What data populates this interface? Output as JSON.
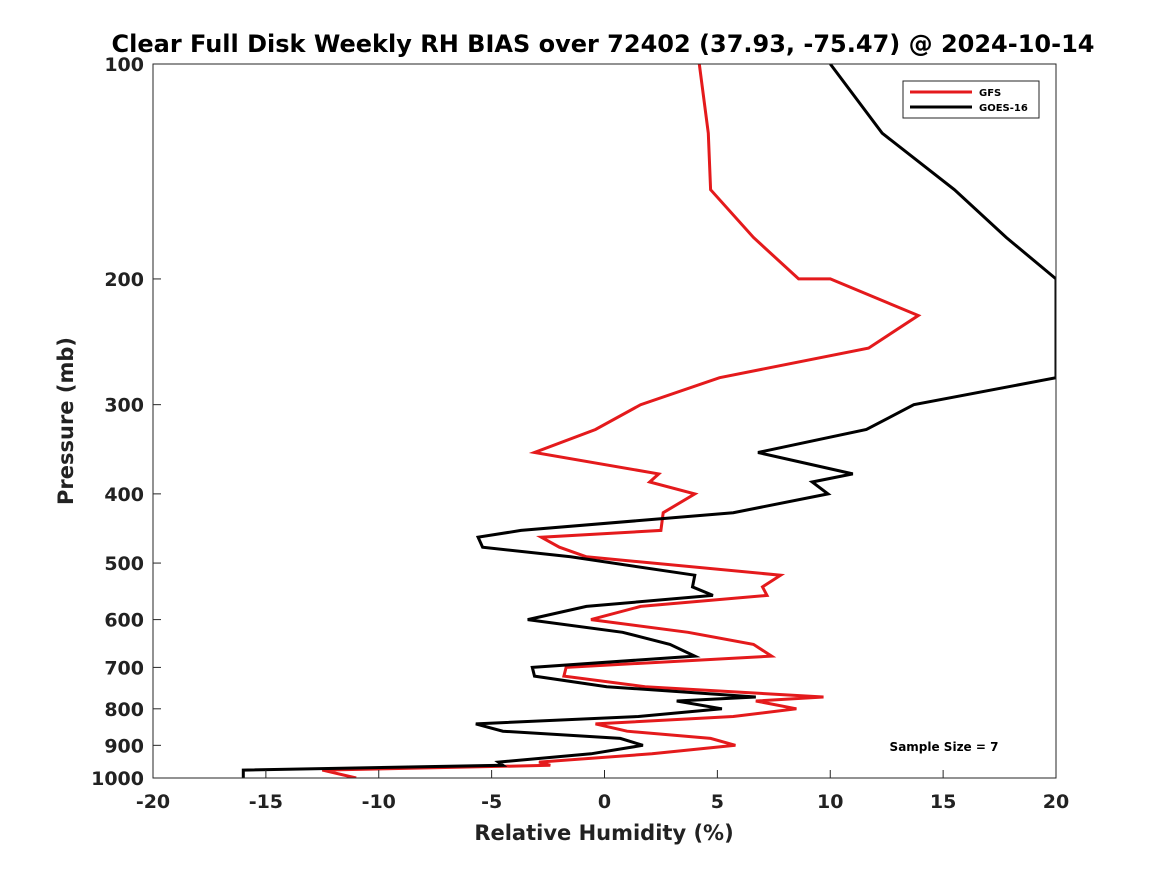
{
  "chart_data": {
    "type": "line",
    "title": "Clear Full Disk Weekly RH BIAS over 72402 (37.93, -75.47) @ 2024-10-14",
    "xlabel": "Relative Humidity (%)",
    "ylabel": "Pressure (mb)",
    "xlim": [
      -20,
      20
    ],
    "ylim": [
      100,
      1000
    ],
    "yscale": "log",
    "xticks": [
      -20,
      -15,
      -10,
      -5,
      0,
      5,
      10,
      15,
      20
    ],
    "xtick_labels": [
      "-20",
      "-15",
      "-10",
      "-5",
      "0",
      "5",
      "10",
      "15",
      "20"
    ],
    "yticks": [
      100,
      200,
      300,
      400,
      500,
      600,
      700,
      800,
      900,
      1000
    ],
    "ytick_labels": [
      "100",
      "200",
      "300",
      "400",
      "500",
      "600",
      "700",
      "800",
      "900",
      "1000"
    ],
    "grid": false,
    "legend_position": "top-right",
    "annotation": "Sample Size = 7",
    "series": [
      {
        "name": "GFS",
        "color": "#e41a1c",
        "points": [
          [
            4.2,
            100
          ],
          [
            4.6,
            125
          ],
          [
            4.7,
            150
          ],
          [
            6.6,
            175
          ],
          [
            8.6,
            200
          ],
          [
            10.0,
            200
          ],
          [
            13.9,
            225
          ],
          [
            11.7,
            250
          ],
          [
            5.1,
            275
          ],
          [
            1.6,
            300
          ],
          [
            -0.4,
            325
          ],
          [
            -3.1,
            350
          ],
          [
            2.4,
            375
          ],
          [
            2.0,
            385
          ],
          [
            4.0,
            400
          ],
          [
            2.6,
            425
          ],
          [
            2.5,
            450
          ],
          [
            -2.8,
            460
          ],
          [
            -2.0,
            475
          ],
          [
            -0.8,
            490
          ],
          [
            7.8,
            520
          ],
          [
            7.0,
            540
          ],
          [
            7.2,
            555
          ],
          [
            1.6,
            575
          ],
          [
            -0.6,
            600
          ],
          [
            3.7,
            625
          ],
          [
            6.6,
            650
          ],
          [
            7.4,
            675
          ],
          [
            -1.7,
            700
          ],
          [
            -1.8,
            720
          ],
          [
            1.8,
            745
          ],
          [
            9.7,
            770
          ],
          [
            6.7,
            780
          ],
          [
            8.5,
            800
          ],
          [
            5.7,
            820
          ],
          [
            -0.4,
            840
          ],
          [
            1.0,
            860
          ],
          [
            4.7,
            880
          ],
          [
            5.8,
            900
          ],
          [
            2.1,
            925
          ],
          [
            -2.9,
            950
          ],
          [
            -2.4,
            960
          ],
          [
            -12.5,
            975
          ],
          [
            -11.0,
            1000
          ]
        ]
      },
      {
        "name": "GOES-16",
        "color": "#000000",
        "points": [
          [
            10.0,
            100
          ],
          [
            12.3,
            125
          ],
          [
            15.5,
            150
          ],
          [
            17.8,
            175
          ],
          [
            20.0,
            200
          ],
          [
            20.0,
            275
          ],
          [
            13.7,
            300
          ],
          [
            11.6,
            325
          ],
          [
            6.8,
            350
          ],
          [
            11.0,
            375
          ],
          [
            9.2,
            385
          ],
          [
            9.9,
            400
          ],
          [
            5.7,
            425
          ],
          [
            -3.7,
            450
          ],
          [
            -5.6,
            460
          ],
          [
            -5.4,
            475
          ],
          [
            -1.5,
            490
          ],
          [
            4.0,
            520
          ],
          [
            3.9,
            540
          ],
          [
            4.8,
            555
          ],
          [
            -0.8,
            575
          ],
          [
            -3.4,
            600
          ],
          [
            0.8,
            625
          ],
          [
            2.9,
            650
          ],
          [
            4.0,
            675
          ],
          [
            -3.2,
            700
          ],
          [
            -3.1,
            720
          ],
          [
            0.1,
            745
          ],
          [
            6.7,
            770
          ],
          [
            3.2,
            780
          ],
          [
            5.2,
            800
          ],
          [
            1.5,
            820
          ],
          [
            -5.7,
            840
          ],
          [
            -4.5,
            860
          ],
          [
            0.7,
            880
          ],
          [
            1.7,
            900
          ],
          [
            -0.6,
            925
          ],
          [
            -4.7,
            950
          ],
          [
            -4.5,
            960
          ],
          [
            -16.0,
            975
          ],
          [
            -16.0,
            1000
          ]
        ]
      }
    ]
  }
}
